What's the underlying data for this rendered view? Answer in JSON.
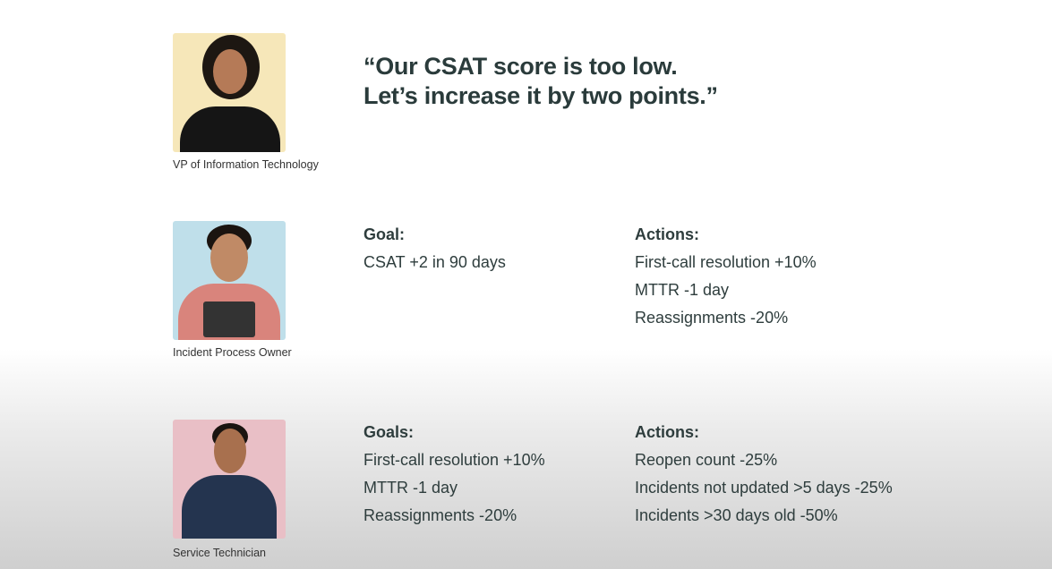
{
  "quote": {
    "line1": "“Our CSAT score is too low.",
    "line2": "Let’s increase it by two points.”"
  },
  "people": [
    {
      "role": "VP of Information Technology",
      "photo_bg": "#f6e7b9"
    },
    {
      "role": "Incident Process Owner",
      "photo_bg": "#bfdfea",
      "goal_heading": "Goal:",
      "goals": [
        "CSAT +2 in 90 days"
      ],
      "actions_heading": "Actions:",
      "actions": [
        "First-call resolution  +10%",
        "MTTR  -1 day",
        "Reassignments  -20%"
      ]
    },
    {
      "role": "Service Technician",
      "photo_bg": "#e9bfc6",
      "goal_heading": "Goals:",
      "goals": [
        "First-call resolution  +10%",
        "MTTR  -1 day",
        "Reassignments  -20%"
      ],
      "actions_heading": "Actions:",
      "actions": [
        "Reopen count  -25%",
        "Incidents not updated >5 days  -25%",
        "Incidents >30 days old  -50%"
      ]
    }
  ]
}
